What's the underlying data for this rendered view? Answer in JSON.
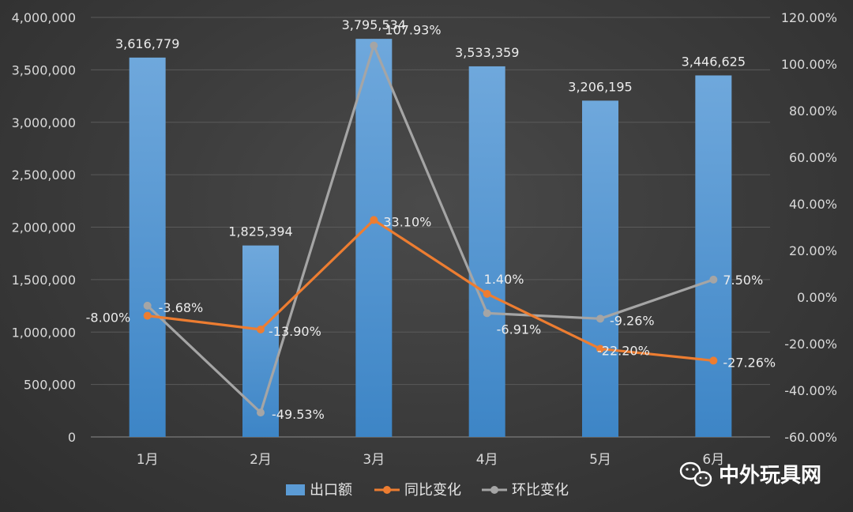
{
  "chart_data": {
    "type": "bar",
    "categories": [
      "1月",
      "2月",
      "3月",
      "4月",
      "5月",
      "6月"
    ],
    "series": [
      {
        "name": "出口额",
        "type": "bar",
        "axis": "left",
        "color": "#5b9bd5",
        "values": [
          3616779,
          1825394,
          3795534,
          3533359,
          3206195,
          3446625
        ],
        "labels": [
          "3,616,779",
          "1,825,394",
          "3,795,534",
          "3,533,359",
          "3,206,195",
          "3,446,625"
        ]
      },
      {
        "name": "同比变化",
        "type": "line",
        "axis": "right",
        "color": "#ed7d31",
        "values": [
          -8.0,
          -13.9,
          33.1,
          1.4,
          -22.2,
          -27.26
        ],
        "labels": [
          "-8.00%",
          "-13.90%",
          "33.10%",
          "1.40%",
          "-22.20%",
          "-27.26%"
        ]
      },
      {
        "name": "环比变化",
        "type": "line",
        "axis": "right",
        "color": "#a5a5a5",
        "values": [
          -3.68,
          -49.53,
          107.93,
          -6.91,
          -9.26,
          7.5
        ],
        "labels": [
          "-3.68%",
          "-49.53%",
          "107.93%",
          "-6.91%",
          "-9.26%",
          "7.50%"
        ]
      }
    ],
    "left_axis": {
      "ylim": [
        0,
        4000000
      ],
      "ticks": [
        "0",
        "500,000",
        "1,000,000",
        "1,500,000",
        "2,000,000",
        "2,500,000",
        "3,000,000",
        "3,500,000",
        "4,000,000"
      ]
    },
    "right_axis": {
      "ylim": [
        -60,
        120
      ],
      "ticks": [
        "-60.00%",
        "-40.00%",
        "-20.00%",
        "0.00%",
        "20.00%",
        "40.00%",
        "60.00%",
        "80.00%",
        "100.00%",
        "120.00%"
      ]
    },
    "title": "",
    "xlabel": "",
    "ylabel": "",
    "grid": true,
    "legend_position": "bottom"
  },
  "watermark": {
    "text": "中外玩具网",
    "icon": "wechat-icon"
  }
}
